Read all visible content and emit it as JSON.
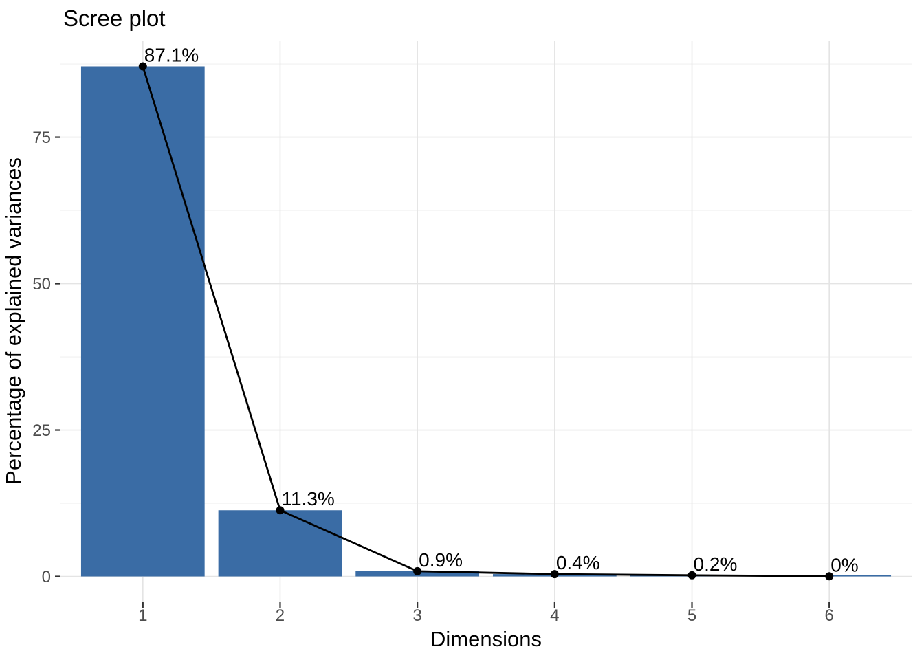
{
  "chart_data": {
    "type": "bar",
    "overlay": "line-with-points",
    "title": "Scree plot",
    "xlabel": "Dimensions",
    "ylabel": "Percentage of explained variances",
    "categories": [
      "1",
      "2",
      "3",
      "4",
      "5",
      "6"
    ],
    "values": [
      87.1,
      11.3,
      0.9,
      0.4,
      0.2,
      0.03
    ],
    "point_labels": [
      "87.1%",
      "11.3%",
      "0.9%",
      "0.4%",
      "0.2%",
      "0%"
    ],
    "yticks": [
      0,
      25,
      50,
      75
    ],
    "ylim": [
      -4.4,
      91.5
    ],
    "grid": {
      "horizontal_major": true,
      "horizontal_minor": true,
      "vertical_major": true,
      "vertical_minor": false
    },
    "legend": "none",
    "colors": {
      "bar_fill": "#3A6CA5",
      "line": "#000000",
      "point": "#000000",
      "label_text": "#000000",
      "grid_major": "#E4E4E4",
      "grid_minor": "#ECECEC",
      "tick_mark": "#333333",
      "tick_label": "#4D4D4D",
      "background": "#FFFFFF"
    }
  }
}
